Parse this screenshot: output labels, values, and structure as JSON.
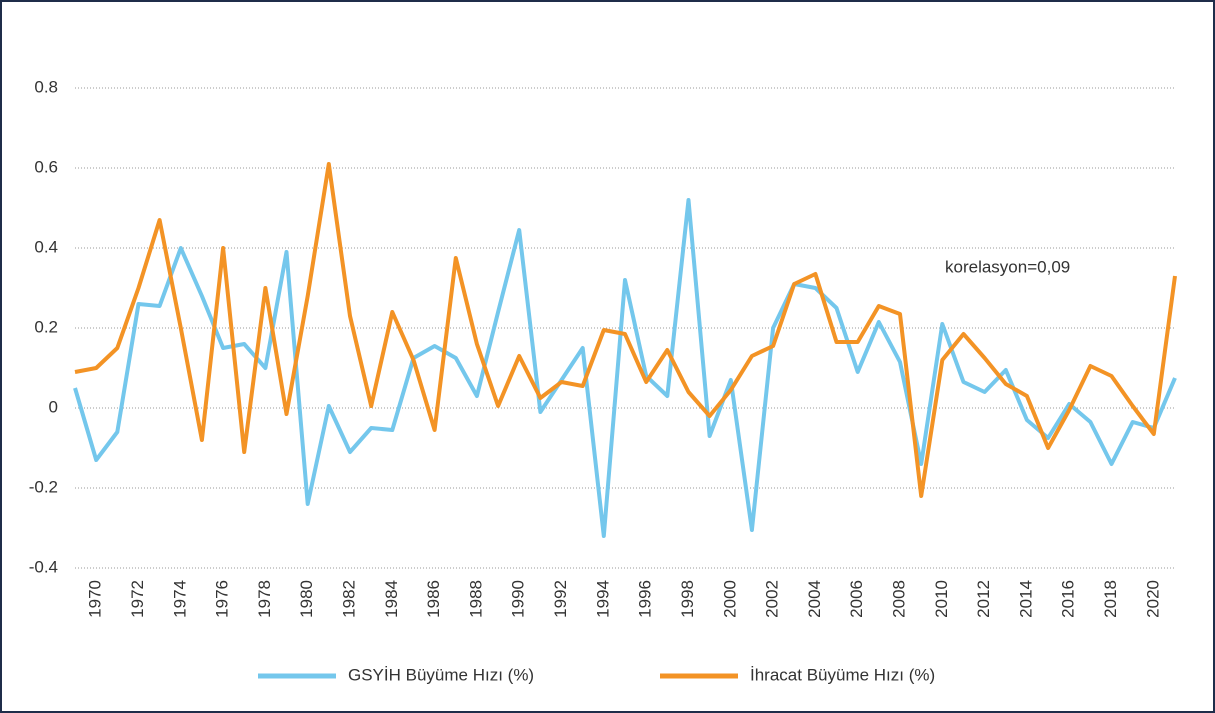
{
  "chart_data": {
    "type": "line",
    "annotation": "korelasyon=0,09",
    "categories": [
      null,
      "1970",
      null,
      "1972",
      null,
      "1974",
      null,
      "1976",
      null,
      "1978",
      null,
      "1980",
      null,
      "1982",
      null,
      "1984",
      null,
      "1986",
      null,
      "1988",
      null,
      "1990",
      null,
      "1992",
      null,
      "1994",
      null,
      "1996",
      null,
      "1998",
      null,
      "2000",
      null,
      "2002",
      null,
      "2004",
      null,
      "2006",
      null,
      "2008",
      null,
      "2010",
      null,
      "2012",
      null,
      "2014",
      null,
      "2016",
      null,
      "2018",
      null,
      "2020",
      null
    ],
    "series": [
      {
        "name": "GSYİH Büyüme Hızı (%)",
        "color": "#74c7ec",
        "values": [
          0.05,
          -0.13,
          -0.06,
          0.26,
          0.255,
          0.4,
          0.28,
          0.15,
          0.16,
          0.1,
          0.39,
          -0.24,
          0.005,
          -0.11,
          -0.05,
          -0.055,
          0.125,
          0.155,
          0.125,
          0.03,
          0.24,
          0.445,
          -0.01,
          0.07,
          0.15,
          -0.32,
          0.32,
          0.08,
          0.03,
          0.52,
          -0.07,
          0.07,
          -0.305,
          0.2,
          0.31,
          0.3,
          0.25,
          0.09,
          0.215,
          0.115,
          -0.14,
          0.21,
          0.065,
          0.04,
          0.095,
          -0.03,
          -0.075,
          0.01,
          -0.035,
          -0.14,
          -0.035,
          -0.05,
          0.075
        ]
      },
      {
        "name": "İhracat Büyüme Hızı (%)",
        "color": "#f39325",
        "values": [
          0.09,
          0.1,
          0.15,
          0.3,
          0.47,
          0.2,
          -0.08,
          0.4,
          -0.11,
          0.3,
          -0.015,
          0.28,
          0.61,
          0.23,
          0.005,
          0.24,
          0.12,
          -0.055,
          0.375,
          0.16,
          0.005,
          0.13,
          0.025,
          0.065,
          0.055,
          0.195,
          0.185,
          0.065,
          0.145,
          0.04,
          -0.02,
          0.045,
          0.13,
          0.155,
          0.31,
          0.335,
          0.165,
          0.165,
          0.255,
          0.235,
          -0.22,
          0.12,
          0.185,
          0.125,
          0.06,
          0.03,
          -0.1,
          -0.005,
          0.105,
          0.08,
          0.005,
          -0.065,
          0.33
        ]
      }
    ],
    "ylim": [
      -0.4,
      0.9
    ],
    "yticks": [
      -0.4,
      -0.2,
      0,
      0.2,
      0.4,
      0.6,
      0.8
    ],
    "grid": true,
    "legend": "bottom"
  }
}
